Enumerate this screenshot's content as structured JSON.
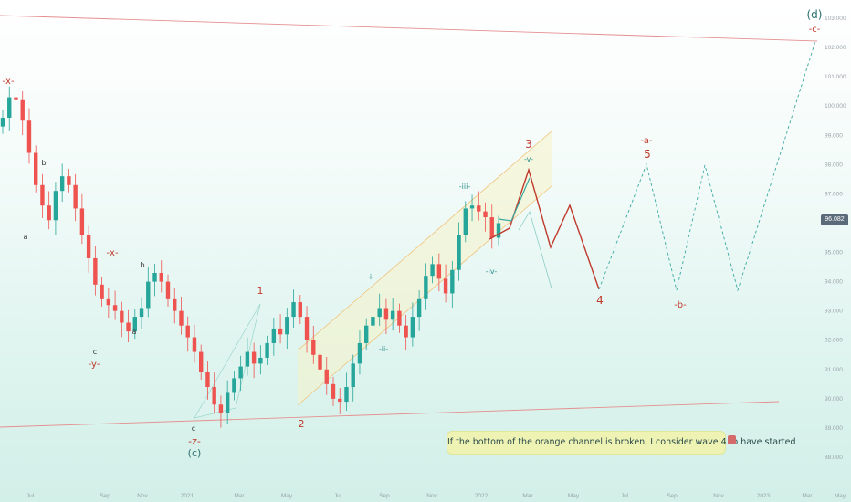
{
  "chart_data": {
    "type": "candlestick",
    "title": "",
    "xlabel": "",
    "ylabel": "",
    "ylim": [
      88.0,
      103.5
    ],
    "y_ticks": [
      "103.000",
      "102.000",
      "101.000",
      "100.000",
      "99.000",
      "98.000",
      "97.000",
      "96.000",
      "95.000",
      "94.000",
      "93.000",
      "92.000",
      "91.000",
      "90.000",
      "89.000",
      "88.000"
    ],
    "x_ticks": [
      "Jul",
      "Sep",
      "Nov",
      "2021",
      "Mar",
      "May",
      "Jul",
      "Sep",
      "Nov",
      "2022",
      "Mar",
      "May",
      "Jul",
      "Sep",
      "Nov",
      "2023",
      "Mar",
      "May"
    ],
    "last_price": "96.082",
    "wave_labels": [
      "-x-",
      "b",
      "a",
      "-x-",
      "b",
      "c",
      "a",
      "-y-",
      "c",
      "-z-",
      "(c)",
      "1",
      "2",
      "-i-",
      "-ii-",
      "-iii-",
      "-iv-",
      "-v-",
      "3",
      "4",
      "-a-",
      "5",
      "-b-",
      "(d)",
      "-c-"
    ],
    "annotation": "If the bottom of the orange channel is broken, I consider wave 4 to have started",
    "colors": {
      "up": "#26a69a",
      "down": "#ef5350",
      "wave": "#c0392b",
      "subwave": "#2a8f8f",
      "projection": "#3aa8a0",
      "trendline": "#e58f8f"
    },
    "candle_closes": [
      99.6,
      100.3,
      100.2,
      99.5,
      98.4,
      97.3,
      96.6,
      96.1,
      97.1,
      97.6,
      97.3,
      96.5,
      95.6,
      94.8,
      93.9,
      93.4,
      93.2,
      93.0,
      92.6,
      92.3,
      92.8,
      93.1,
      94.0,
      94.3,
      94.0,
      93.4,
      93.0,
      92.5,
      92.1,
      91.6,
      90.9,
      90.4,
      89.8,
      89.5,
      90.2,
      90.7,
      91.1,
      91.6,
      91.2,
      91.4,
      91.9,
      92.4,
      92.2,
      92.8,
      93.3,
      92.8,
      92.0,
      91.5,
      91.0,
      90.5,
      90.0,
      89.9,
      90.4,
      91.2,
      91.9,
      92.5,
      92.8,
      93.1,
      92.7,
      93.0,
      92.5,
      92.1,
      92.8,
      93.4,
      94.2,
      94.6,
      94.1,
      93.6,
      94.4,
      95.6,
      96.5,
      96.6,
      96.4,
      96.2,
      95.5,
      96.0
    ]
  }
}
